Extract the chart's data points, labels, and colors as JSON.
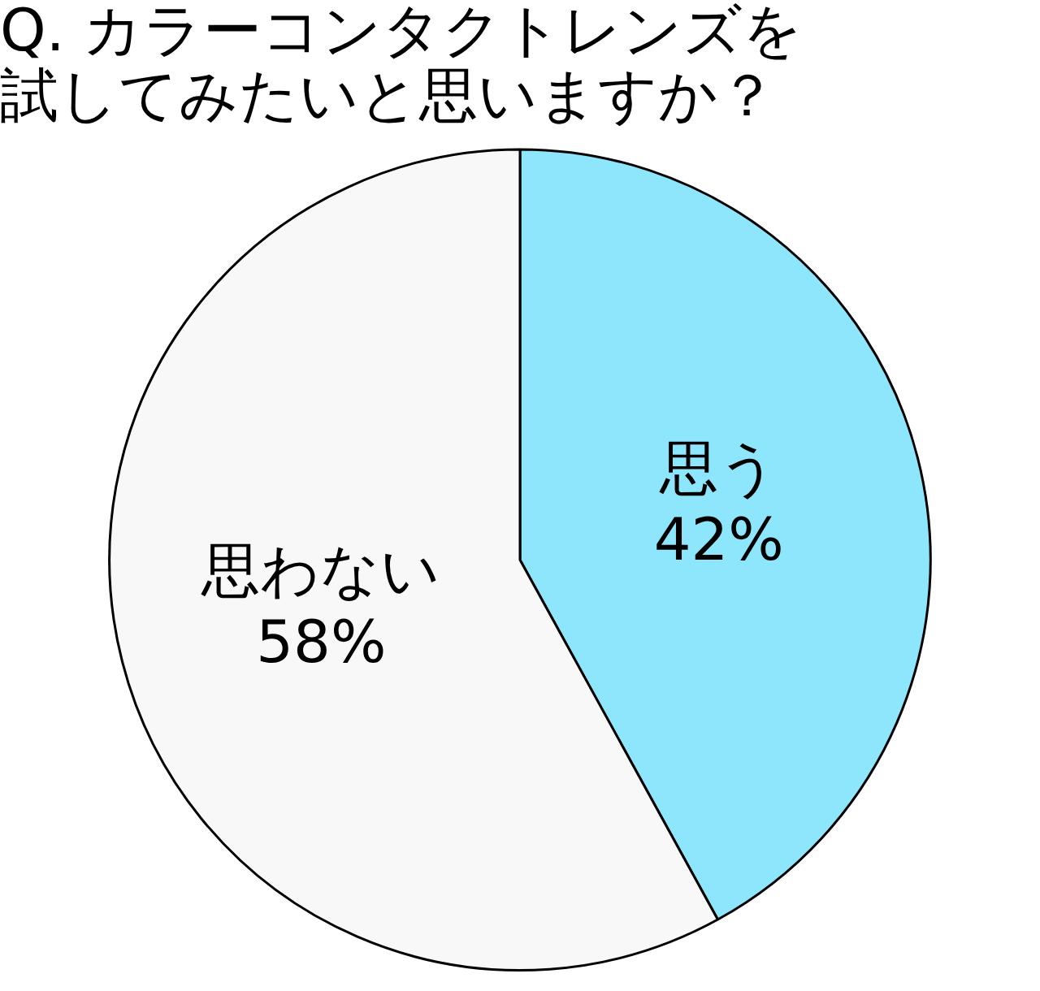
{
  "chart_data": {
    "type": "pie",
    "title": "Q. カラーコンタクトレンズを試してみたいと思いますか？",
    "categories": [
      "思う",
      "思わない"
    ],
    "values": [
      42,
      58
    ],
    "colors": [
      "#8ee6fd",
      "#f8f8f8"
    ],
    "value_labels": [
      "42%",
      "58%"
    ]
  }
}
